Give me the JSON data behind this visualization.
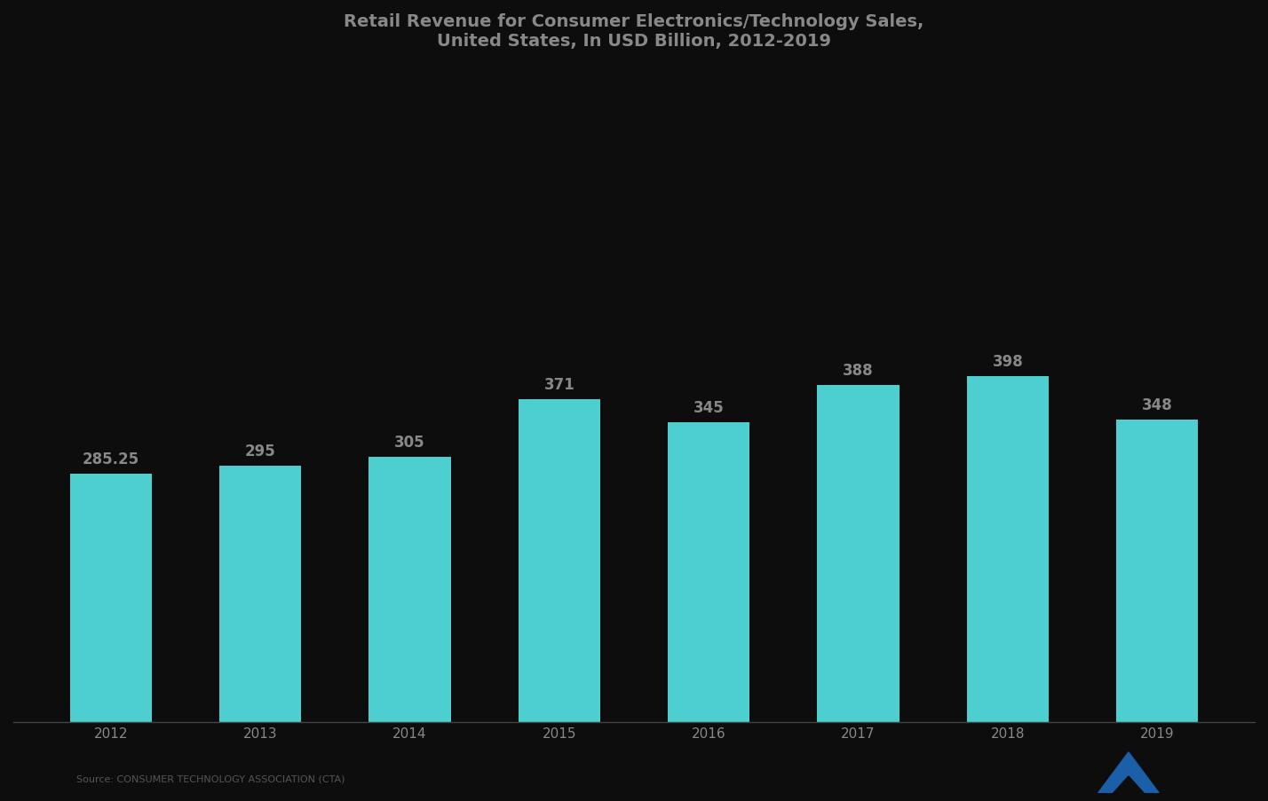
{
  "title_line1": "Retail Revenue for Consumer Electronics/Technology Sales,",
  "title_line2": "United States, In USD Billion, 2012-2019",
  "categories": [
    "2012",
    "2013",
    "2014",
    "2015",
    "2016",
    "2017",
    "2018",
    "2019"
  ],
  "values": [
    285.25,
    295.0,
    305.0,
    371.0,
    345.0,
    388.0,
    398.0,
    348.0
  ],
  "bar_color": "#4DCFCF",
  "label_values": [
    "285.25",
    "295",
    "305",
    "371",
    "345",
    "388",
    "398",
    "348"
  ],
  "background_color": "#0d0d0d",
  "text_color": "#888888",
  "title_color": "#888888",
  "ylim": [
    0,
    750
  ],
  "source_text": "Source: CONSUMER TECHNOLOGY ASSOCIATION (CTA)",
  "bar_width": 0.55,
  "label_fontsize": 12,
  "tick_fontsize": 11
}
